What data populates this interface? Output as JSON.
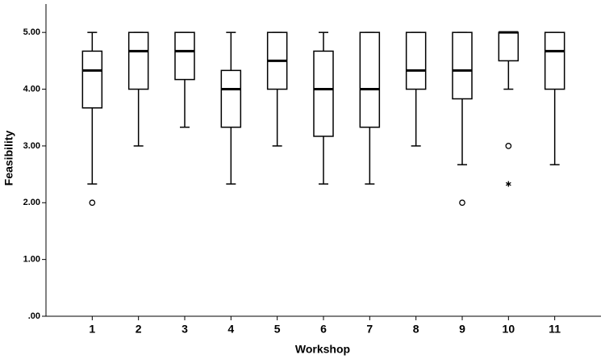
{
  "chart_data": {
    "type": "boxplot",
    "x_label": "Workshop",
    "y_label": "Feasibility",
    "categories": [
      "1",
      "2",
      "3",
      "4",
      "5",
      "6",
      "7",
      "8",
      "9",
      "10",
      "11"
    ],
    "boxes": [
      {
        "min": 2.33,
        "q1": 3.67,
        "median": 4.33,
        "q3": 4.67,
        "max": 5.0,
        "outliers": [
          2.0
        ],
        "extremes": []
      },
      {
        "min": 3.0,
        "q1": 4.0,
        "median": 4.67,
        "q3": 5.0,
        "max": 5.0,
        "outliers": [],
        "extremes": []
      },
      {
        "min": 3.33,
        "q1": 4.17,
        "median": 4.67,
        "q3": 5.0,
        "max": 5.0,
        "outliers": [],
        "extremes": []
      },
      {
        "min": 2.33,
        "q1": 3.33,
        "median": 4.0,
        "q3": 4.33,
        "max": 5.0,
        "outliers": [],
        "extremes": []
      },
      {
        "min": 3.0,
        "q1": 4.0,
        "median": 4.5,
        "q3": 5.0,
        "max": 5.0,
        "outliers": [],
        "extremes": []
      },
      {
        "min": 2.33,
        "q1": 3.17,
        "median": 4.0,
        "q3": 4.67,
        "max": 5.0,
        "outliers": [],
        "extremes": []
      },
      {
        "min": 2.33,
        "q1": 3.33,
        "median": 4.0,
        "q3": 5.0,
        "max": 5.0,
        "outliers": [],
        "extremes": []
      },
      {
        "min": 3.0,
        "q1": 4.0,
        "median": 4.33,
        "q3": 5.0,
        "max": 5.0,
        "outliers": [],
        "extremes": []
      },
      {
        "min": 2.67,
        "q1": 3.83,
        "median": 4.33,
        "q3": 5.0,
        "max": 5.0,
        "outliers": [
          2.0
        ],
        "extremes": []
      },
      {
        "min": 4.0,
        "q1": 4.5,
        "median": 5.0,
        "q3": 5.0,
        "max": 5.0,
        "outliers": [
          3.0
        ],
        "extremes": [
          2.33
        ]
      },
      {
        "min": 2.67,
        "q1": 4.0,
        "median": 4.67,
        "q3": 5.0,
        "max": 5.0,
        "outliers": [],
        "extremes": []
      }
    ],
    "ylim": [
      0,
      5.5
    ],
    "yticks": [
      {
        "value": 0,
        "label": ".00"
      },
      {
        "value": 1,
        "label": "1.00"
      },
      {
        "value": 2,
        "label": "2.00"
      },
      {
        "value": 3,
        "label": "3.00"
      },
      {
        "value": 4,
        "label": "4.00"
      },
      {
        "value": 5,
        "label": "5.00"
      }
    ],
    "color": "#ffffff"
  }
}
